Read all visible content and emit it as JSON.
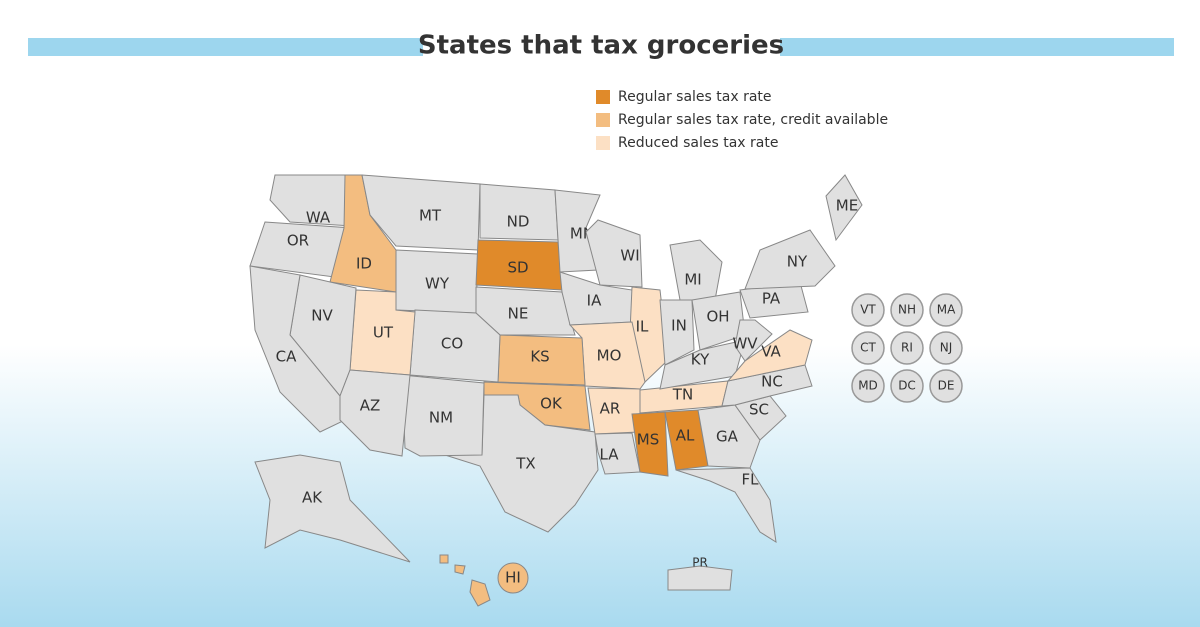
{
  "title": "States that tax groceries",
  "legend": [
    {
      "label": "Regular sales tax rate",
      "color": "#e08a2a"
    },
    {
      "label": "Regular sales tax rate, credit available",
      "color": "#f3bd80"
    },
    {
      "label": "Reduced sales tax rate",
      "color": "#fce0c4"
    }
  ],
  "default_color": "#e0e0e0",
  "states": [
    {
      "label": "WA"
    },
    {
      "label": "OR"
    },
    {
      "label": "ID",
      "category": 1
    },
    {
      "label": "MT"
    },
    {
      "label": "WY"
    },
    {
      "label": "ND"
    },
    {
      "label": "SD",
      "category": 0
    },
    {
      "label": "NE"
    },
    {
      "label": "MN"
    },
    {
      "label": "WI"
    },
    {
      "label": "IA"
    },
    {
      "label": "IL",
      "category": 2
    },
    {
      "label": "MI"
    },
    {
      "label": "IN"
    },
    {
      "label": "OH"
    },
    {
      "label": "MO",
      "category": 2
    },
    {
      "label": "KS",
      "category": 1
    },
    {
      "label": "OK",
      "category": 1
    },
    {
      "label": "TX"
    },
    {
      "label": "NM"
    },
    {
      "label": "CO"
    },
    {
      "label": "UT",
      "category": 2
    },
    {
      "label": "NV"
    },
    {
      "label": "CA"
    },
    {
      "label": "AZ"
    },
    {
      "label": "AR",
      "category": 2
    },
    {
      "label": "LA"
    },
    {
      "label": "MS",
      "category": 0
    },
    {
      "label": "AL",
      "category": 0
    },
    {
      "label": "TN",
      "category": 2
    },
    {
      "label": "KY"
    },
    {
      "label": "GA"
    },
    {
      "label": "FL"
    },
    {
      "label": "SC"
    },
    {
      "label": "NC"
    },
    {
      "label": "VA",
      "category": 2
    },
    {
      "label": "WV"
    },
    {
      "label": "PA"
    },
    {
      "label": "NY"
    },
    {
      "label": "ME"
    },
    {
      "label": "AK"
    },
    {
      "label": "PR"
    },
    {
      "label": "HI",
      "category": 1
    }
  ],
  "small_states": [
    {
      "label": "VT"
    },
    {
      "label": "NH"
    },
    {
      "label": "MA"
    },
    {
      "label": "CT"
    },
    {
      "label": "RI"
    },
    {
      "label": "NJ"
    },
    {
      "label": "MD"
    },
    {
      "label": "DC"
    },
    {
      "label": "DE"
    }
  ]
}
